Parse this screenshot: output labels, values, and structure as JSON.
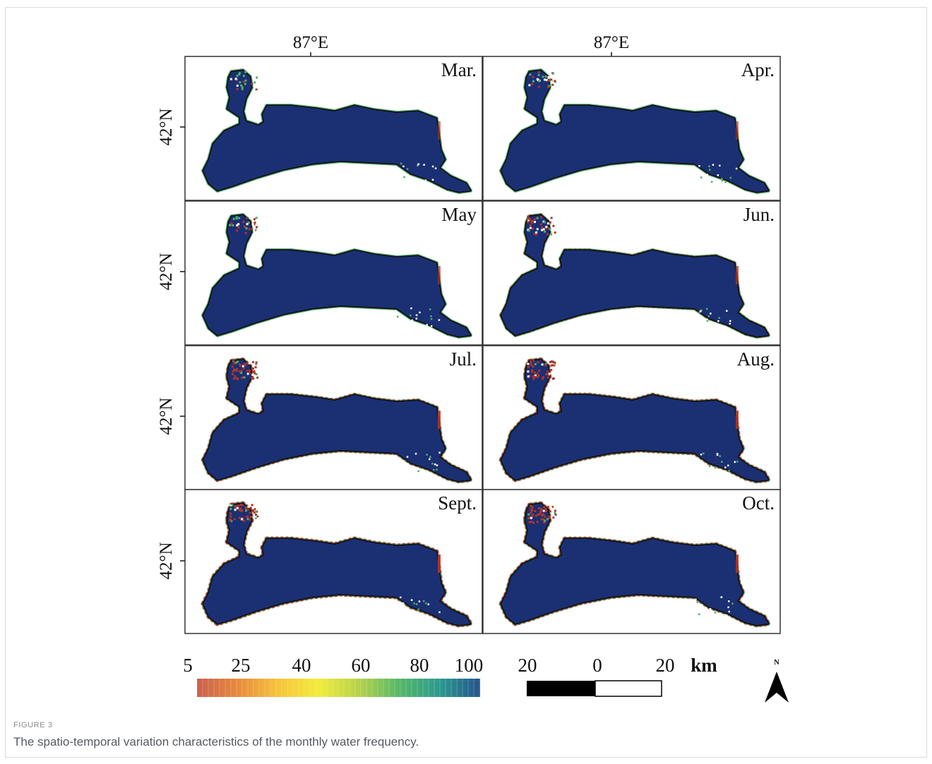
{
  "figure": {
    "label": "FIGURE 3",
    "caption": "The spatio-temporal variation characteristics of the monthly water frequency."
  },
  "map": {
    "longitude_labels": [
      "87°E",
      "87°E"
    ],
    "latitude_label": "42°N",
    "panels": [
      {
        "month": "Mar.",
        "edge_level": 0.15
      },
      {
        "month": "Apr.",
        "edge_level": 0.25
      },
      {
        "month": "May",
        "edge_level": 0.3
      },
      {
        "month": "Jun.",
        "edge_level": 0.5
      },
      {
        "month": "Jul.",
        "edge_level": 0.75
      },
      {
        "month": "Aug.",
        "edge_level": 0.8
      },
      {
        "month": "Sept.",
        "edge_level": 0.85
      },
      {
        "month": "Oct.",
        "edge_level": 0.8
      }
    ],
    "colorbar": {
      "ticks": [
        "5",
        "25",
        "40",
        "60",
        "80",
        "100"
      ],
      "colors": [
        "#c9604e",
        "#e88a3c",
        "#f6c33a",
        "#f3ec3a",
        "#b5d34a",
        "#55b868",
        "#2c9a8d",
        "#24558f"
      ]
    },
    "scalebar": {
      "labels": [
        "20",
        "0",
        "20"
      ],
      "unit": "km"
    },
    "north_label": "N",
    "colors": {
      "water": "#1b2f73",
      "shore": "#111111",
      "low_frequency": "#b0342a",
      "mid_frequency": "#4fae6a"
    }
  }
}
